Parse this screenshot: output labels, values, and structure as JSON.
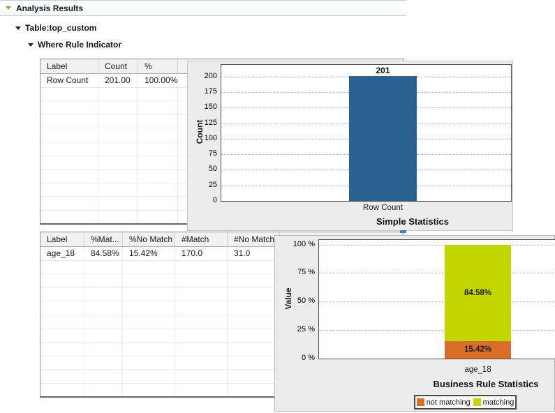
{
  "header": {
    "title": "Analysis Results"
  },
  "tree": {
    "table_node": "Table:top_custom",
    "indicator_node": "Where Rule Indicator"
  },
  "tables": [
    {
      "columns": [
        "Label",
        "Count",
        "%"
      ],
      "rows": [
        [
          "Row Count",
          "201.00",
          "100.00%"
        ]
      ]
    },
    {
      "columns": [
        "Label",
        "%Mat...",
        "%No Match",
        "#Match",
        "#No Match"
      ],
      "rows": [
        [
          "age_18",
          "84.58%",
          "15.42%",
          "170.0",
          "31.0"
        ]
      ]
    }
  ],
  "chart_data": [
    {
      "type": "bar",
      "title": "Simple Statistics",
      "ylabel": "Count",
      "categories": [
        "Row Count"
      ],
      "values": [
        201
      ],
      "value_labels": [
        "201"
      ],
      "bar_color": "#2a6191",
      "ylim": [
        0,
        219
      ],
      "yticks": [
        0,
        25,
        50,
        75,
        100,
        125,
        150,
        175,
        200
      ],
      "tick_suffix": "",
      "grid": "dotted-horizontal",
      "legend": "none"
    },
    {
      "type": "stacked-bar",
      "title": "Business Rule Statistics",
      "ylabel": "Value",
      "categories": [
        "age_18"
      ],
      "series": [
        {
          "name": "not matching",
          "value": 15.42,
          "label": "15.42%",
          "color": "#d76f28"
        },
        {
          "name": "matching",
          "value": 84.58,
          "label": "84.58%",
          "color": "#c3d600"
        }
      ],
      "ylim": [
        0,
        104
      ],
      "yticks": [
        0,
        25,
        50,
        75,
        100
      ],
      "tick_suffix": " %",
      "grid": "dotted-horizontal",
      "legend": "bottom"
    }
  ],
  "colors": {
    "accent_line": "#b9cfe8",
    "tree_arrow": "#96a52c",
    "bar_blue": "#2a6191",
    "not_matching_orange": "#d76f28",
    "matching_green": "#c3d600"
  }
}
